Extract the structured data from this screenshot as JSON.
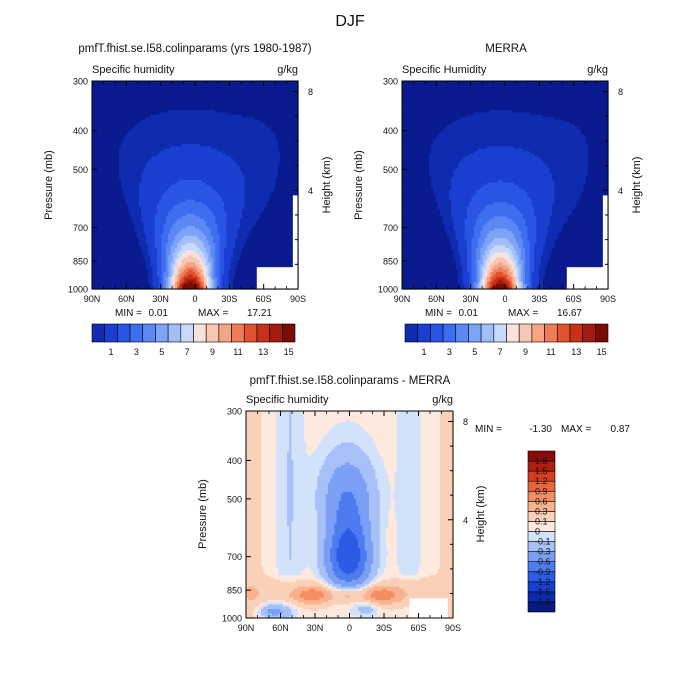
{
  "chart_data": {
    "type": "heatmap",
    "title": "DJF",
    "panels": [
      {
        "id": "model",
        "type": "heatmap",
        "title": "pmfT.fhist.se.I58.colinparams (yrs 1980-1987)",
        "subtitle_left": "Specific humidity",
        "units": "g/kg",
        "ylabel": "Pressure (mb)",
        "ylabel_right": "Height (km)",
        "x_ticks": [
          "90N",
          "60N",
          "30N",
          "0",
          "30S",
          "60S",
          "90S"
        ],
        "y_ticks": [
          1000,
          850,
          700,
          500,
          400,
          300
        ],
        "height_ticks": [
          4,
          8
        ],
        "ylim": [
          1000,
          300
        ],
        "min_label": "MIN =",
        "min_value": "0.01",
        "max_label": "MAX =",
        "max_value": "17.21",
        "peak_value": 17.21,
        "colorbar_labels": [
          "1",
          "3",
          "5",
          "7",
          "9",
          "11",
          "13",
          "15"
        ]
      },
      {
        "id": "obs",
        "type": "heatmap",
        "title": "MERRA",
        "subtitle_left": "Specific Humidity",
        "units": "g/kg",
        "ylabel": "Pressure (mb)",
        "ylabel_right": "Height (km)",
        "x_ticks": [
          "90N",
          "60N",
          "30N",
          "0",
          "30S",
          "60S",
          "90S"
        ],
        "y_ticks": [
          1000,
          850,
          700,
          500,
          400,
          300
        ],
        "height_ticks": [
          4,
          8
        ],
        "ylim": [
          1000,
          300
        ],
        "min_label": "MIN =",
        "min_value": "0.01",
        "max_label": "MAX =",
        "max_value": "16.67",
        "peak_value": 16.67,
        "colorbar_labels": [
          "1",
          "3",
          "5",
          "7",
          "9",
          "11",
          "13",
          "15"
        ]
      },
      {
        "id": "diff",
        "type": "heatmap",
        "title": "pmfT.fhist.se.I58.colinparams - MERRA",
        "subtitle_left": "Specific humidity",
        "units": "g/kg",
        "ylabel": "Pressure (mb)",
        "ylabel_right": "Height (km)",
        "x_ticks": [
          "90N",
          "60N",
          "30N",
          "0",
          "30S",
          "60S",
          "90S"
        ],
        "y_ticks": [
          1000,
          850,
          700,
          500,
          400,
          300
        ],
        "height_ticks": [
          4,
          8
        ],
        "ylim": [
          1000,
          300
        ],
        "min_label": "MIN =",
        "min_value": "-1.30",
        "max_label": "MAX =",
        "max_value": "0.87",
        "colorbar_labels": [
          "1.8",
          "1.5",
          "1.2",
          "0.9",
          "0.6",
          "0.3",
          "0.1",
          "0",
          "-0.1",
          "-0.3",
          "-0.6",
          "-0.9",
          "-1.2",
          "-1.5",
          "-1.8"
        ]
      }
    ],
    "abs_levels": [
      0.5,
      1,
      2,
      3,
      4,
      5,
      6,
      7,
      8,
      9,
      10,
      11,
      12,
      13,
      14,
      15
    ],
    "abs_colors": [
      "#0a1a8f",
      "#0f2cb0",
      "#1a3fd0",
      "#2a55e4",
      "#3e6ef0",
      "#5c88f4",
      "#7da3f7",
      "#a2bff9",
      "#c9d9fb",
      "#f7e3dc",
      "#f8c7b3",
      "#f5a486",
      "#ef7c58",
      "#e3522e",
      "#c8301a",
      "#a21a10",
      "#7a0c08"
    ],
    "diff_colors": [
      "#061a80",
      "#0a2bb0",
      "#1440d4",
      "#2c5be6",
      "#4d7bf0",
      "#7a9ff5",
      "#a7c1f8",
      "#d3e2fb",
      "#fde9dd",
      "#fbd0b8",
      "#f8b28e",
      "#f48d62",
      "#ea653a",
      "#d23e1f",
      "#b01e12",
      "#8a0c0a"
    ]
  }
}
